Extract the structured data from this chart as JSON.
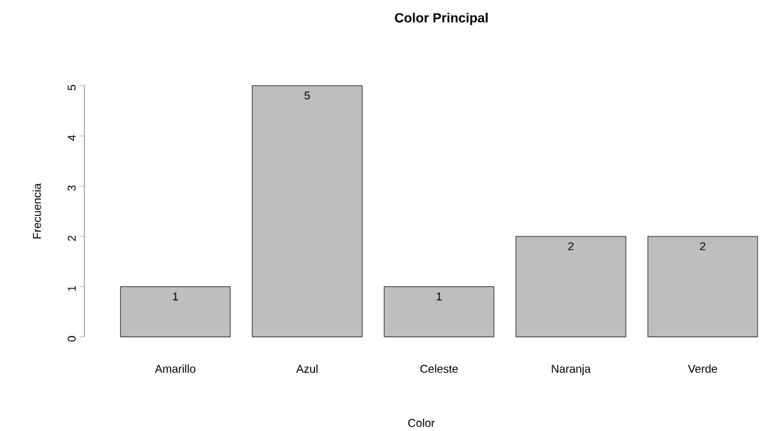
{
  "chart_data": {
    "type": "bar",
    "title": "Color Principal",
    "xlabel": "Color",
    "ylabel": "Frecuencia",
    "categories": [
      "Amarillo",
      "Azul",
      "Celeste",
      "Naranja",
      "Verde"
    ],
    "values": [
      1,
      5,
      1,
      2,
      2
    ],
    "color": "#bebebe",
    "ylim": [
      0,
      5
    ],
    "yticks": [
      0,
      1,
      2,
      3,
      4,
      5
    ],
    "data_labels": true
  }
}
